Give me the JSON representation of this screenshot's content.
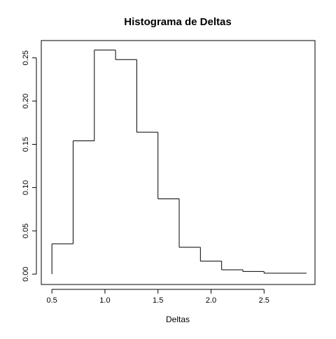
{
  "chart_data": {
    "type": "histogram",
    "title": "Histograma de Deltas",
    "xlabel": "Deltas",
    "ylabel": "",
    "bin_edges": [
      0.5,
      0.7,
      0.9,
      1.1,
      1.3,
      1.5,
      1.7,
      1.9,
      2.1,
      2.3,
      2.5,
      2.9
    ],
    "values": [
      0.035,
      0.154,
      0.259,
      0.248,
      0.164,
      0.087,
      0.031,
      0.015,
      0.005,
      0.003,
      0.001
    ],
    "xlim": [
      0.4,
      2.98
    ],
    "ylim": [
      -0.012,
      0.27
    ],
    "xticks": [
      0.5,
      1.0,
      1.5,
      2.0,
      2.5
    ],
    "xtick_labels": [
      "0.5",
      "1.0",
      "1.5",
      "2.0",
      "2.5"
    ],
    "yticks": [
      0.0,
      0.05,
      0.1,
      0.15,
      0.2,
      0.25
    ],
    "ytick_labels": [
      "0.00",
      "0.05",
      "0.10",
      "0.15",
      "0.20",
      "0.25"
    ],
    "grid": false,
    "style": "step",
    "line_color": "#000000"
  }
}
